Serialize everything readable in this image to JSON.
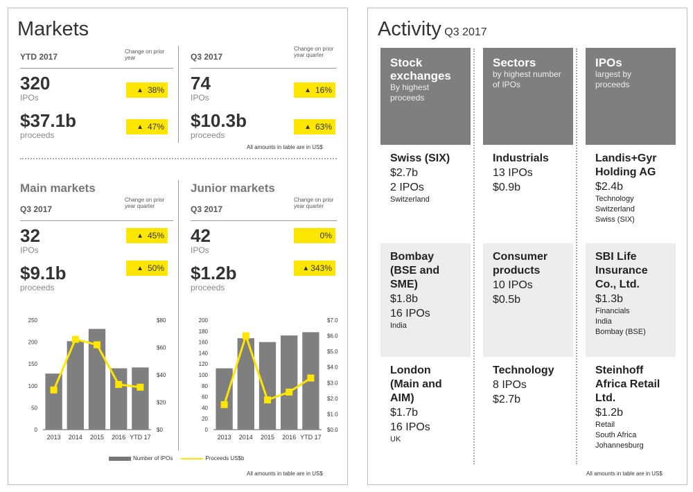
{
  "markets": {
    "title": "Markets",
    "ytd": {
      "label": "YTD 2017",
      "change_note": "Change on prior year",
      "ipos_value": "320",
      "ipos_label": "IPOs",
      "ipos_change": "38%",
      "proceeds_value": "$37.1b",
      "proceeds_label": "proceeds",
      "proceeds_change": "47%"
    },
    "q3": {
      "label": "Q3 2017",
      "change_note": "Change on prior year quarter",
      "ipos_value": "74",
      "ipos_label": "IPOs",
      "ipos_change": "16%",
      "proceeds_value": "$10.3b",
      "proceeds_label": "proceeds",
      "proceeds_change": "63%"
    },
    "footnote_top": "All amounts in table are in US$",
    "main": {
      "title": "Main markets",
      "period": "Q3 2017",
      "change_note": "Change on prior year quarter",
      "ipos_value": "32",
      "ipos_label": "IPOs",
      "ipos_change": "45%",
      "proceeds_value": "$9.1b",
      "proceeds_label": "proceeds",
      "proceeds_change": "50%"
    },
    "junior": {
      "title": "Junior markets",
      "period": "Q3 2017",
      "change_note": "Change on prior year quarter",
      "ipos_value": "42",
      "ipos_label": "IPOs",
      "ipos_change": "0%",
      "proceeds_value": "$1.2b",
      "proceeds_label": "proceeds",
      "proceeds_change": "343%"
    },
    "legend": {
      "bar": "Number of IPOs",
      "line": "Proceeds US$b"
    },
    "footnote_bottom": "All amounts in table are in US$"
  },
  "colors": {
    "bar": "#7f7f7f",
    "line": "#ffe600",
    "badge": "#ffe600",
    "header": "#7f7f7f",
    "shade": "#ededed"
  },
  "chart_data": [
    {
      "type": "bar",
      "categories": [
        "2013",
        "2014",
        "2015",
        "2016",
        "YTD 17"
      ],
      "series": [
        {
          "name": "Number of IPOs",
          "type": "bar",
          "axis": "left",
          "values": [
            128,
            202,
            230,
            140,
            142
          ]
        },
        {
          "name": "Proceeds US$b",
          "type": "line",
          "axis": "right",
          "values": [
            29,
            66,
            62,
            33,
            31
          ]
        }
      ],
      "ylim_left": [
        0,
        250
      ],
      "yticks_left": [
        "0",
        "50",
        "100",
        "150",
        "200",
        "250"
      ],
      "ylim_right": [
        0,
        80
      ],
      "yticks_right": [
        "$0",
        "$20",
        "$40",
        "$60",
        "$80"
      ],
      "legend": "bottom"
    },
    {
      "type": "bar",
      "categories": [
        "2013",
        "2014",
        "2015",
        "2016",
        "YTD 17"
      ],
      "series": [
        {
          "name": "Number of IPOs",
          "type": "bar",
          "axis": "left",
          "values": [
            112,
            167,
            160,
            172,
            178
          ]
        },
        {
          "name": "Proceeds US$b",
          "type": "line",
          "axis": "right",
          "values": [
            1.6,
            6.0,
            1.9,
            2.4,
            3.3
          ]
        }
      ],
      "ylim_left": [
        0,
        200
      ],
      "yticks_left": [
        "0",
        "20",
        "40",
        "60",
        "80",
        "100",
        "120",
        "140",
        "160",
        "180",
        "200"
      ],
      "ylim_right": [
        0,
        7
      ],
      "yticks_right": [
        "$0.0",
        "$1.0",
        "$2.0",
        "$3.0",
        "$4.0",
        "$5.0",
        "$6.0",
        "$7.0"
      ],
      "legend": "bottom"
    }
  ],
  "activity": {
    "title": "Activity",
    "subtitle": "Q3 2017",
    "footnote": "All amounts in table are in US$",
    "columns": [
      {
        "head": "Stock exchanges",
        "sub": "By highest proceeds",
        "rows": [
          {
            "name": "Swiss (SIX)",
            "value1": "$2.7b",
            "value2": "2 IPOs",
            "small1": "Switzerland",
            "small2": "",
            "small3": ""
          },
          {
            "name": "Bombay (BSE and SME)",
            "value1": "$1.8b",
            "value2": "16 IPOs",
            "small1": "India",
            "small2": "",
            "small3": ""
          },
          {
            "name": "London (Main and AIM)",
            "value1": "$1.7b",
            "value2": "16 IPOs",
            "small1": "UK",
            "small2": "",
            "small3": ""
          }
        ]
      },
      {
        "head": "Sectors",
        "sub": "by highest number of IPOs",
        "rows": [
          {
            "name": "Industrials",
            "value1": "13 IPOs",
            "value2": "$0.9b",
            "small1": "",
            "small2": "",
            "small3": ""
          },
          {
            "name": "Consumer products",
            "value1": "10 IPOs",
            "value2": "$0.5b",
            "small1": "",
            "small2": "",
            "small3": ""
          },
          {
            "name": "Technology",
            "value1": "8 IPOs",
            "value2": "$2.7b",
            "small1": "",
            "small2": "",
            "small3": ""
          }
        ]
      },
      {
        "head": "IPOs",
        "sub": "largest by proceeds",
        "rows": [
          {
            "name": "Landis+Gyr Holding AG",
            "value1": "$2.4b",
            "value2": "",
            "small1": "Technology",
            "small2": "Switzerland",
            "small3": "Swiss (SIX)"
          },
          {
            "name": "SBI Life Insurance Co., Ltd.",
            "value1": "$1.3b",
            "value2": "",
            "small1": "Financials",
            "small2": "India",
            "small3": "Bombay (BSE)"
          },
          {
            "name": "Steinhoff Africa Retail Ltd.",
            "value1": "$1.2b",
            "value2": "",
            "small1": "Retail",
            "small2": "South Africa",
            "small3": "Johannesburg"
          }
        ]
      }
    ]
  }
}
